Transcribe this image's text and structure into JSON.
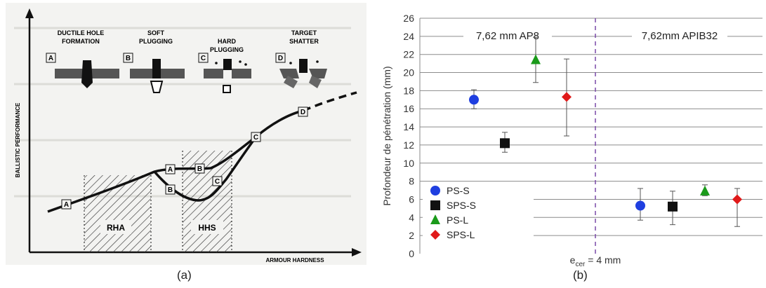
{
  "panel_a": {
    "caption": "(a)",
    "stages": [
      {
        "letter": "A",
        "line1": "DUCTILE HOLE",
        "line2": "FORMATION"
      },
      {
        "letter": "B",
        "line1": "SOFT",
        "line2": "PLUGGING"
      },
      {
        "letter": "C",
        "line1": "HARD",
        "line2": "PLUGGING"
      },
      {
        "letter": "D",
        "line1": "TARGET",
        "line2": "SHATTER"
      }
    ],
    "ylabel": "BALLISTIC PERFORMANCE",
    "xlabel": "ARMOUR HARDNESS",
    "zone_rha": "RHA",
    "zone_hhs": "HHS",
    "curve_markers": [
      "A",
      "A",
      "B",
      "B",
      "C",
      "C",
      "D"
    ]
  },
  "panel_b": {
    "caption": "(b)",
    "region_left": "7,62 mm AP8",
    "region_right": "7,62mm APIB32",
    "xlabel_main": "e",
    "xlabel_sub": "cer",
    "xlabel_rest": " = 4 mm"
  },
  "chart_data": {
    "type": "scatter",
    "ylabel": "Profondeur de pénétration (mm)",
    "ylim": [
      0,
      26
    ],
    "yticks": [
      0,
      2,
      4,
      6,
      8,
      10,
      12,
      14,
      16,
      18,
      20,
      22,
      24,
      26
    ],
    "legend_position": "bottom-left",
    "series": [
      {
        "name": "PS-S",
        "marker": "circle",
        "color": "#1f3fe0",
        "points": [
          {
            "group": "7,62 mm AP8",
            "y": 17.0,
            "err_low": 16.0,
            "err_high": 18.1
          },
          {
            "group": "7,62mm APIB32",
            "y": 5.3,
            "err_low": 3.7,
            "err_high": 7.2
          }
        ]
      },
      {
        "name": "SPS-S",
        "marker": "square",
        "color": "#111111",
        "points": [
          {
            "group": "7,62 mm AP8",
            "y": 12.2,
            "err_low": 11.2,
            "err_high": 13.4
          },
          {
            "group": "7,62mm APIB32",
            "y": 5.2,
            "err_low": 3.2,
            "err_high": 6.9
          }
        ]
      },
      {
        "name": "PS-L",
        "marker": "triangle",
        "color": "#1a9a1a",
        "points": [
          {
            "group": "7,62 mm AP8",
            "y": 21.4,
            "err_low": 18.9,
            "err_high": 23.9
          },
          {
            "group": "7,62mm APIB32",
            "y": 6.9,
            "err_low": 6.4,
            "err_high": 7.6
          }
        ]
      },
      {
        "name": "SPS-L",
        "marker": "diamond",
        "color": "#e01a1a",
        "points": [
          {
            "group": "7,62 mm AP8",
            "y": 17.3,
            "err_low": 13.0,
            "err_high": 21.5
          },
          {
            "group": "7,62mm APIB32",
            "y": 6.0,
            "err_low": 3.0,
            "err_high": 7.2
          }
        ]
      }
    ]
  }
}
